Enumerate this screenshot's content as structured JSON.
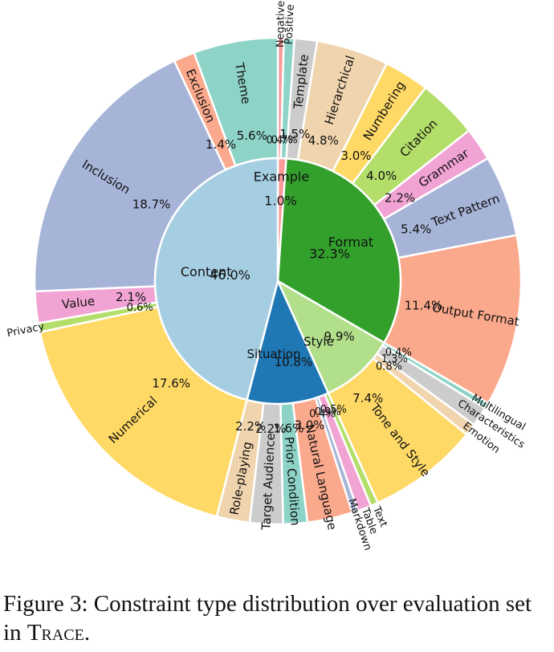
{
  "caption": {
    "text": "Figure 3: Constraint type distribution over evaluation set in ",
    "name": "Trace",
    "end": "."
  },
  "chart_data": {
    "type": "sunburst",
    "title": "",
    "inner": [
      {
        "label": "Example",
        "value_label": "1.0%",
        "value": 1.0,
        "color": "#fb9a99"
      },
      {
        "label": "Format",
        "value_label": "32.3%",
        "value": 32.3,
        "color": "#33a02c"
      },
      {
        "label": "Style",
        "value_label": "9.9%",
        "value": 9.9,
        "color": "#b2df8a"
      },
      {
        "label": "Situation",
        "value_label": "10.8%",
        "value": 10.8,
        "color": "#1f78b4"
      },
      {
        "label": "Content",
        "value_label": "46.0%",
        "value": 46.0,
        "color": "#a6cee3"
      }
    ],
    "outer": [
      {
        "label": "Negative",
        "value_label": "0.4%",
        "value": 0.4,
        "parent": "Example",
        "color": "#fb9a99"
      },
      {
        "label": "Positive",
        "value_label": "0.7%",
        "value": 0.7,
        "parent": "Example",
        "color": "#8dd3c7"
      },
      {
        "label": "Template",
        "value_label": "1.5%",
        "value": 1.5,
        "parent": "Format",
        "color": "#cccccc"
      },
      {
        "label": "Hierarchical",
        "value_label": "4.8%",
        "value": 4.8,
        "parent": "Format",
        "color": "#f0d4ad"
      },
      {
        "label": "Numbering",
        "value_label": "3.0%",
        "value": 3.0,
        "parent": "Format",
        "color": "#ffd966"
      },
      {
        "label": "Citation",
        "value_label": "4.0%",
        "value": 4.0,
        "parent": "Format",
        "color": "#b3de69"
      },
      {
        "label": "Grammar",
        "value_label": "2.2%",
        "value": 2.2,
        "parent": "Format",
        "color": "#f1a3d3"
      },
      {
        "label": "Text Pattern",
        "value_label": "5.4%",
        "value": 5.4,
        "parent": "Format",
        "color": "#a6b4d8"
      },
      {
        "label": "Output Format",
        "value_label": "11.4%",
        "value": 11.4,
        "parent": "Format",
        "color": "#fba98c"
      },
      {
        "label": "Multilingual",
        "value_label": "0.4%",
        "value": 0.4,
        "parent": "Style",
        "color": "#8dd3c7"
      },
      {
        "label": "Characteristics",
        "value_label": "1.3%",
        "value": 1.3,
        "parent": "Style",
        "color": "#cccccc"
      },
      {
        "label": "Emotion",
        "value_label": "0.8%",
        "value": 0.8,
        "parent": "Style",
        "color": "#f0d4ad"
      },
      {
        "label": "Tone and Style",
        "value_label": "7.4%",
        "value": 7.4,
        "parent": "Style",
        "color": "#ffd966"
      },
      {
        "label": "Text",
        "value_label": "0.5%",
        "value": 0.5,
        "parent": "Situation",
        "color": "#b3de69"
      },
      {
        "label": "Table",
        "value_label": "0.9%",
        "value": 0.9,
        "parent": "Situation",
        "color": "#f1a3d3"
      },
      {
        "label": "Markdown",
        "value_label": "0.4%",
        "value": 0.4,
        "parent": "Situation",
        "color": "#a6b4d8"
      },
      {
        "label": "Natural Language",
        "value_label": "3.0%",
        "value": 3.0,
        "parent": "Situation",
        "color": "#fba98c"
      },
      {
        "label": "Prior Condition",
        "value_label": "1.6%",
        "value": 1.6,
        "parent": "Situation",
        "color": "#8dd3c7"
      },
      {
        "label": "Target Audience",
        "value_label": "2.2%",
        "value": 2.2,
        "parent": "Situation",
        "color": "#cccccc"
      },
      {
        "label": "Role-playing",
        "value_label": "2.2%",
        "value": 2.2,
        "parent": "Situation",
        "color": "#f0d4ad"
      },
      {
        "label": "Numerical",
        "value_label": "17.6%",
        "value": 17.6,
        "parent": "Content",
        "color": "#ffd966"
      },
      {
        "label": "Privacy",
        "value_label": "0.6%",
        "value": 0.6,
        "parent": "Content",
        "color": "#b3de69"
      },
      {
        "label": "Value",
        "value_label": "2.1%",
        "value": 2.1,
        "parent": "Content",
        "color": "#f1a3d3"
      },
      {
        "label": "Inclusion",
        "value_label": "18.7%",
        "value": 18.7,
        "parent": "Content",
        "color": "#a6b4d8"
      },
      {
        "label": "Exclusion",
        "value_label": "1.4%",
        "value": 1.4,
        "parent": "Content",
        "color": "#fba98c"
      },
      {
        "label": "Theme",
        "value_label": "5.6%",
        "value": 5.6,
        "parent": "Content",
        "color": "#8dd3c7"
      }
    ]
  }
}
